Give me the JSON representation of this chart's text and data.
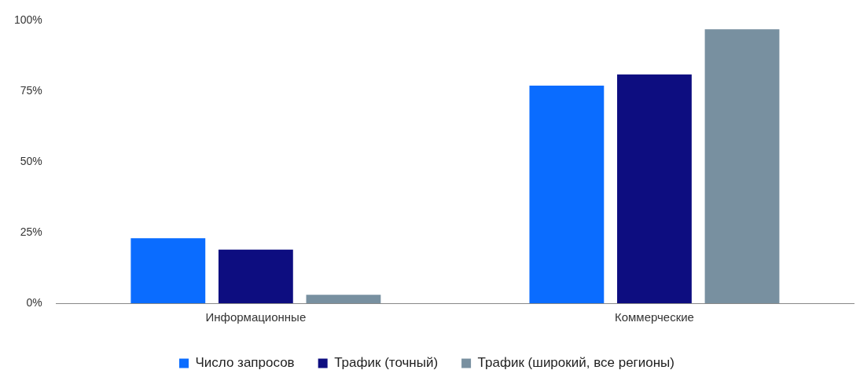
{
  "chart_data": {
    "type": "bar",
    "categories": [
      "Информационные",
      "Коммерческие"
    ],
    "series": [
      {
        "name": "Число запросов",
        "color": "#0a6cff",
        "values": [
          23,
          77
        ]
      },
      {
        "name": "Трафик (точный)",
        "color": "#0d0d80",
        "values": [
          19,
          81
        ]
      },
      {
        "name": "Трафик (широкий, все регионы)",
        "color": "#7890a0",
        "values": [
          3,
          97
        ]
      }
    ],
    "ylim": [
      0,
      100
    ],
    "yticks": [
      {
        "value": 0,
        "label": "0%"
      },
      {
        "value": 25,
        "label": "25%"
      },
      {
        "value": 50,
        "label": "50%"
      },
      {
        "value": 75,
        "label": "75%"
      },
      {
        "value": 100,
        "label": "100%"
      }
    ],
    "grid": false,
    "legend": "bottom"
  }
}
